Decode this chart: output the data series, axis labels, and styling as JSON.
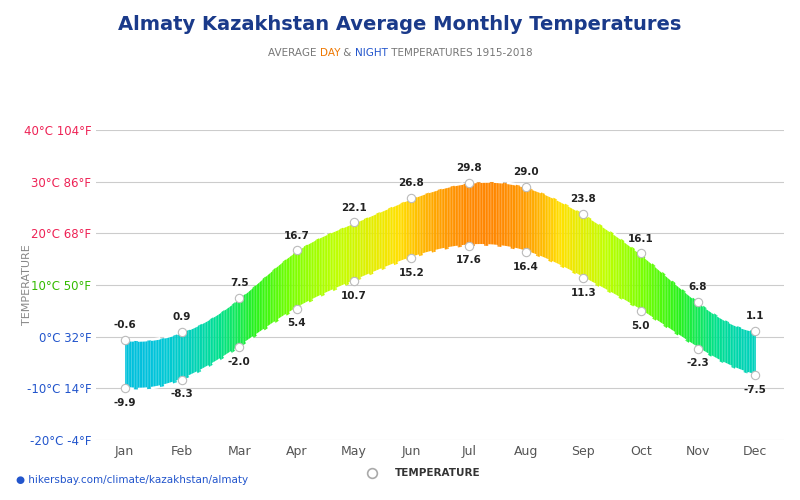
{
  "title": "Almaty Kazakhstan Average Monthly Temperatures",
  "subtitle_parts": [
    [
      "AVERAGE ",
      "#777777"
    ],
    [
      "DAY",
      "#ee7700"
    ],
    [
      " & ",
      "#777777"
    ],
    [
      "NIGHT",
      "#2255cc"
    ],
    [
      " TEMPERATURES 1915-2018",
      "#777777"
    ]
  ],
  "ylabel": "TEMPERATURE",
  "months": [
    "Jan",
    "Feb",
    "Mar",
    "Apr",
    "May",
    "Jun",
    "Jul",
    "Aug",
    "Sep",
    "Oct",
    "Nov",
    "Dec"
  ],
  "day_temps": [
    -0.6,
    0.9,
    7.5,
    16.7,
    22.1,
    26.8,
    29.8,
    29.0,
    23.8,
    16.1,
    6.8,
    1.1
  ],
  "night_temps": [
    -9.9,
    -8.3,
    -2.0,
    5.4,
    10.7,
    15.2,
    17.6,
    16.4,
    11.3,
    5.0,
    -2.3,
    -7.5
  ],
  "ylim": [
    -20,
    40
  ],
  "yticks": [
    -20,
    -10,
    0,
    10,
    20,
    30,
    40
  ],
  "ytick_labels": [
    "-20°C -4°F",
    "-10°C 14°F",
    "0°C 32°F",
    "10°C 50°F",
    "20°C 68°F",
    "30°C 86°F",
    "40°C 104°F"
  ],
  "ytick_colors": [
    "#2255cc",
    "#2255cc",
    "#2255cc",
    "#33bb00",
    "#ee2255",
    "#ee2255",
    "#ee2255"
  ],
  "title_color": "#1a3a8a",
  "url_text": "hikersbay.com/climate/kazakhstan/almaty",
  "url_color": "#2255cc",
  "bg_color": "#ffffff",
  "grid_color": "#cccccc",
  "legend_label": "TEMPERATURE",
  "figsize": [
    8.0,
    5.0
  ],
  "dpi": 100,
  "color_stops": [
    [
      -15,
      [
        0.05,
        0.18,
        0.95
      ]
    ],
    [
      -10,
      [
        0.05,
        0.45,
        1.0
      ]
    ],
    [
      -5,
      [
        0.0,
        0.78,
        0.85
      ]
    ],
    [
      0,
      [
        0.0,
        0.88,
        0.55
      ]
    ],
    [
      5,
      [
        0.15,
        0.95,
        0.1
      ]
    ],
    [
      10,
      [
        0.45,
        1.0,
        0.0
      ]
    ],
    [
      15,
      [
        0.75,
        1.0,
        0.0
      ]
    ],
    [
      20,
      [
        1.0,
        0.88,
        0.0
      ]
    ],
    [
      23,
      [
        1.0,
        0.6,
        0.0
      ]
    ],
    [
      27,
      [
        1.0,
        0.25,
        0.0
      ]
    ],
    [
      30,
      [
        0.95,
        0.0,
        0.0
      ]
    ]
  ]
}
